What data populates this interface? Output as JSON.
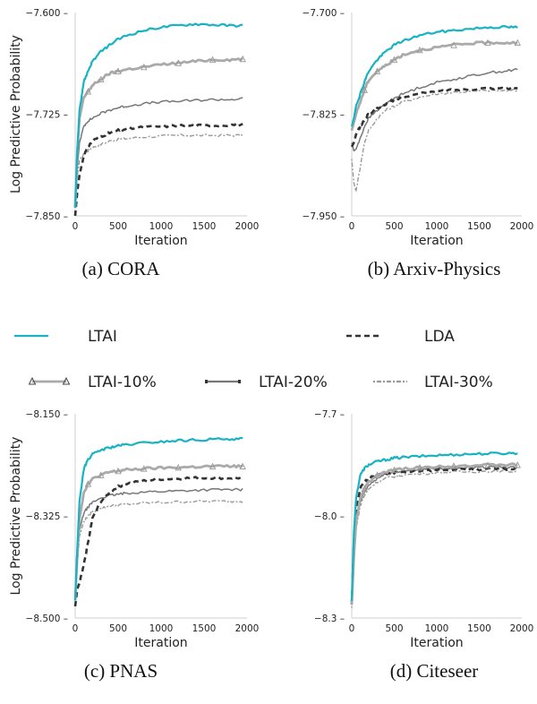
{
  "legend": {
    "entries": [
      {
        "key": "ltai",
        "label": "LTAI",
        "color": "#17b3c3"
      },
      {
        "key": "lda",
        "label": "LDA",
        "color": "#333333"
      },
      {
        "key": "ltai10",
        "label": "LTAI-10%",
        "color": "#aaaaaa"
      },
      {
        "key": "ltai20",
        "label": "LTAI-20%",
        "color": "#777777"
      },
      {
        "key": "ltai30",
        "label": "LTAI-30%",
        "color": "#999999"
      }
    ]
  },
  "chart_data": [
    {
      "type": "line",
      "caption": "(a) CORA",
      "xlabel": "Iteration",
      "ylabel": "Log Predictive Probability",
      "xlim": [
        0,
        2000
      ],
      "ylim": [
        -7.85,
        -7.6
      ],
      "xticks": [
        "0",
        "500",
        "1000",
        "1500",
        "2000"
      ],
      "yticks": [
        "−7.600",
        "−7.725",
        "−7.850"
      ],
      "x": [
        0,
        25,
        50,
        100,
        150,
        200,
        300,
        400,
        500,
        600,
        800,
        1000,
        1200,
        1400,
        1600,
        1800,
        1950
      ],
      "series": [
        {
          "name": "LTAI",
          "values": [
            -7.84,
            -7.77,
            -7.72,
            -7.685,
            -7.672,
            -7.66,
            -7.648,
            -7.64,
            -7.633,
            -7.628,
            -7.622,
            -7.618,
            -7.616,
            -7.614,
            -7.615,
            -7.616,
            -7.616
          ]
        },
        {
          "name": "LTAI-10%",
          "values": [
            -7.84,
            -7.77,
            -7.73,
            -7.705,
            -7.697,
            -7.69,
            -7.682,
            -7.675,
            -7.672,
            -7.67,
            -7.667,
            -7.664,
            -7.662,
            -7.66,
            -7.658,
            -7.658,
            -7.657
          ]
        },
        {
          "name": "LTAI-20%",
          "values": [
            -7.84,
            -7.79,
            -7.76,
            -7.74,
            -7.733,
            -7.73,
            -7.724,
            -7.72,
            -7.717,
            -7.715,
            -7.712,
            -7.71,
            -7.709,
            -7.708,
            -7.707,
            -7.707,
            -7.706
          ]
        },
        {
          "name": "LDA",
          "values": [
            -7.85,
            -7.82,
            -7.8,
            -7.776,
            -7.765,
            -7.758,
            -7.752,
            -7.748,
            -7.745,
            -7.743,
            -7.741,
            -7.74,
            -7.739,
            -7.739,
            -7.739,
            -7.738,
            -7.738
          ]
        },
        {
          "name": "LTAI-30%",
          "values": [
            -7.84,
            -7.8,
            -7.782,
            -7.774,
            -7.77,
            -7.766,
            -7.762,
            -7.758,
            -7.756,
            -7.755,
            -7.753,
            -7.752,
            -7.751,
            -7.751,
            -7.751,
            -7.751,
            -7.751
          ]
        }
      ]
    },
    {
      "type": "line",
      "caption": "(b) Arxiv-Physics",
      "xlabel": "Iteration",
      "ylabel": "",
      "xlim": [
        0,
        2000
      ],
      "ylim": [
        -7.95,
        -7.7
      ],
      "xticks": [
        "0",
        "500",
        "1000",
        "1500",
        "2000"
      ],
      "yticks": [
        "−7.700",
        "−7.825",
        "−7.950"
      ],
      "x": [
        0,
        25,
        50,
        100,
        150,
        200,
        300,
        400,
        500,
        600,
        800,
        1000,
        1200,
        1400,
        1600,
        1800,
        1950
      ],
      "series": [
        {
          "name": "LTAI",
          "values": [
            -7.84,
            -7.83,
            -7.815,
            -7.8,
            -7.785,
            -7.772,
            -7.758,
            -7.748,
            -7.74,
            -7.735,
            -7.728,
            -7.724,
            -7.722,
            -7.72,
            -7.718,
            -7.718,
            -7.718
          ]
        },
        {
          "name": "LTAI-10%",
          "values": [
            -7.845,
            -7.835,
            -7.825,
            -7.81,
            -7.795,
            -7.783,
            -7.772,
            -7.765,
            -7.758,
            -7.752,
            -7.746,
            -7.743,
            -7.74,
            -7.738,
            -7.737,
            -7.737,
            -7.737
          ]
        },
        {
          "name": "LTAI-20%",
          "values": [
            -7.86,
            -7.87,
            -7.868,
            -7.855,
            -7.84,
            -7.83,
            -7.82,
            -7.812,
            -7.805,
            -7.8,
            -7.792,
            -7.786,
            -7.782,
            -7.778,
            -7.774,
            -7.772,
            -7.77
          ]
        },
        {
          "name": "LDA",
          "values": [
            -7.865,
            -7.86,
            -7.85,
            -7.84,
            -7.832,
            -7.825,
            -7.818,
            -7.812,
            -7.808,
            -7.804,
            -7.8,
            -7.797,
            -7.795,
            -7.794,
            -7.793,
            -7.793,
            -7.793
          ]
        },
        {
          "name": "LTAI-30%",
          "values": [
            -7.88,
            -7.91,
            -7.92,
            -7.89,
            -7.86,
            -7.845,
            -7.83,
            -7.82,
            -7.815,
            -7.81,
            -7.804,
            -7.8,
            -7.798,
            -7.797,
            -7.796,
            -7.796,
            -7.796
          ]
        }
      ]
    },
    {
      "type": "line",
      "caption": "(c) PNAS",
      "xlabel": "Iteration",
      "ylabel": "Log Predictive Probability",
      "xlim": [
        0,
        2000
      ],
      "ylim": [
        -8.5,
        -8.15
      ],
      "xticks": [
        "0",
        "500",
        "1000",
        "1500",
        "2000"
      ],
      "yticks": [
        "−8.150",
        "−8.325",
        "−8.500"
      ],
      "x": [
        0,
        25,
        50,
        100,
        150,
        200,
        300,
        400,
        500,
        600,
        800,
        1000,
        1200,
        1400,
        1600,
        1800,
        1950
      ],
      "series": [
        {
          "name": "LTAI",
          "values": [
            -8.47,
            -8.38,
            -8.3,
            -8.245,
            -8.228,
            -8.22,
            -8.212,
            -8.208,
            -8.205,
            -8.203,
            -8.2,
            -8.198,
            -8.196,
            -8.195,
            -8.194,
            -8.193,
            -8.193
          ]
        },
        {
          "name": "LTAI-10%",
          "values": [
            -8.47,
            -8.39,
            -8.33,
            -8.285,
            -8.27,
            -8.262,
            -8.255,
            -8.25,
            -8.248,
            -8.246,
            -8.244,
            -8.243,
            -8.242,
            -8.241,
            -8.24,
            -8.24,
            -8.24
          ]
        },
        {
          "name": "LTAI-20%",
          "values": [
            -8.47,
            -8.4,
            -8.35,
            -8.32,
            -8.31,
            -8.302,
            -8.294,
            -8.29,
            -8.288,
            -8.286,
            -8.284,
            -8.283,
            -8.282,
            -8.281,
            -8.28,
            -8.28,
            -8.28
          ]
        },
        {
          "name": "LDA",
          "values": [
            -8.48,
            -8.45,
            -8.44,
            -8.41,
            -8.37,
            -8.33,
            -8.3,
            -8.285,
            -8.275,
            -8.27,
            -8.265,
            -8.262,
            -8.261,
            -8.26,
            -8.26,
            -8.26,
            -8.26
          ]
        },
        {
          "name": "LTAI-30%",
          "values": [
            -8.47,
            -8.41,
            -8.36,
            -8.335,
            -8.325,
            -8.318,
            -8.312,
            -8.308,
            -8.306,
            -8.305,
            -8.303,
            -8.302,
            -8.301,
            -8.3,
            -8.3,
            -8.3,
            -8.3
          ]
        }
      ]
    },
    {
      "type": "line",
      "caption": "(d) Citeseer",
      "xlabel": "Iteration",
      "ylabel": "",
      "xlim": [
        0,
        2000
      ],
      "ylim": [
        -8.3,
        -7.7
      ],
      "xticks": [
        "0",
        "500",
        "1000",
        "1500",
        "2000"
      ],
      "yticks": [
        "−7.7",
        "−8.0",
        "−8.3"
      ],
      "x": [
        0,
        25,
        50,
        100,
        150,
        200,
        300,
        400,
        500,
        600,
        800,
        1000,
        1200,
        1400,
        1600,
        1800,
        1950
      ],
      "series": [
        {
          "name": "LTAI",
          "values": [
            -8.25,
            -8.05,
            -7.95,
            -7.88,
            -7.86,
            -7.85,
            -7.84,
            -7.835,
            -7.83,
            -7.828,
            -7.825,
            -7.822,
            -7.82,
            -7.818,
            -7.817,
            -7.816,
            -7.815
          ]
        },
        {
          "name": "LTAI-10%",
          "values": [
            -8.26,
            -8.12,
            -8.02,
            -7.95,
            -7.92,
            -7.9,
            -7.88,
            -7.87,
            -7.865,
            -7.862,
            -7.858,
            -7.855,
            -7.853,
            -7.852,
            -7.851,
            -7.85,
            -7.85
          ]
        },
        {
          "name": "LTAI-20%",
          "values": [
            -8.26,
            -8.13,
            -8.03,
            -7.96,
            -7.93,
            -7.91,
            -7.89,
            -7.878,
            -7.872,
            -7.868,
            -7.864,
            -7.861,
            -7.859,
            -7.858,
            -7.857,
            -7.857,
            -7.857
          ]
        },
        {
          "name": "LDA",
          "values": [
            -8.26,
            -8.08,
            -7.98,
            -7.92,
            -7.9,
            -7.89,
            -7.88,
            -7.875,
            -7.872,
            -7.87,
            -7.867,
            -7.865,
            -7.864,
            -7.863,
            -7.862,
            -7.862,
            -7.862
          ]
        },
        {
          "name": "LTAI-30%",
          "values": [
            -8.27,
            -8.14,
            -8.04,
            -7.97,
            -7.94,
            -7.92,
            -7.9,
            -7.89,
            -7.884,
            -7.88,
            -7.876,
            -7.873,
            -7.871,
            -7.87,
            -7.869,
            -7.869,
            -7.869
          ]
        }
      ]
    }
  ]
}
